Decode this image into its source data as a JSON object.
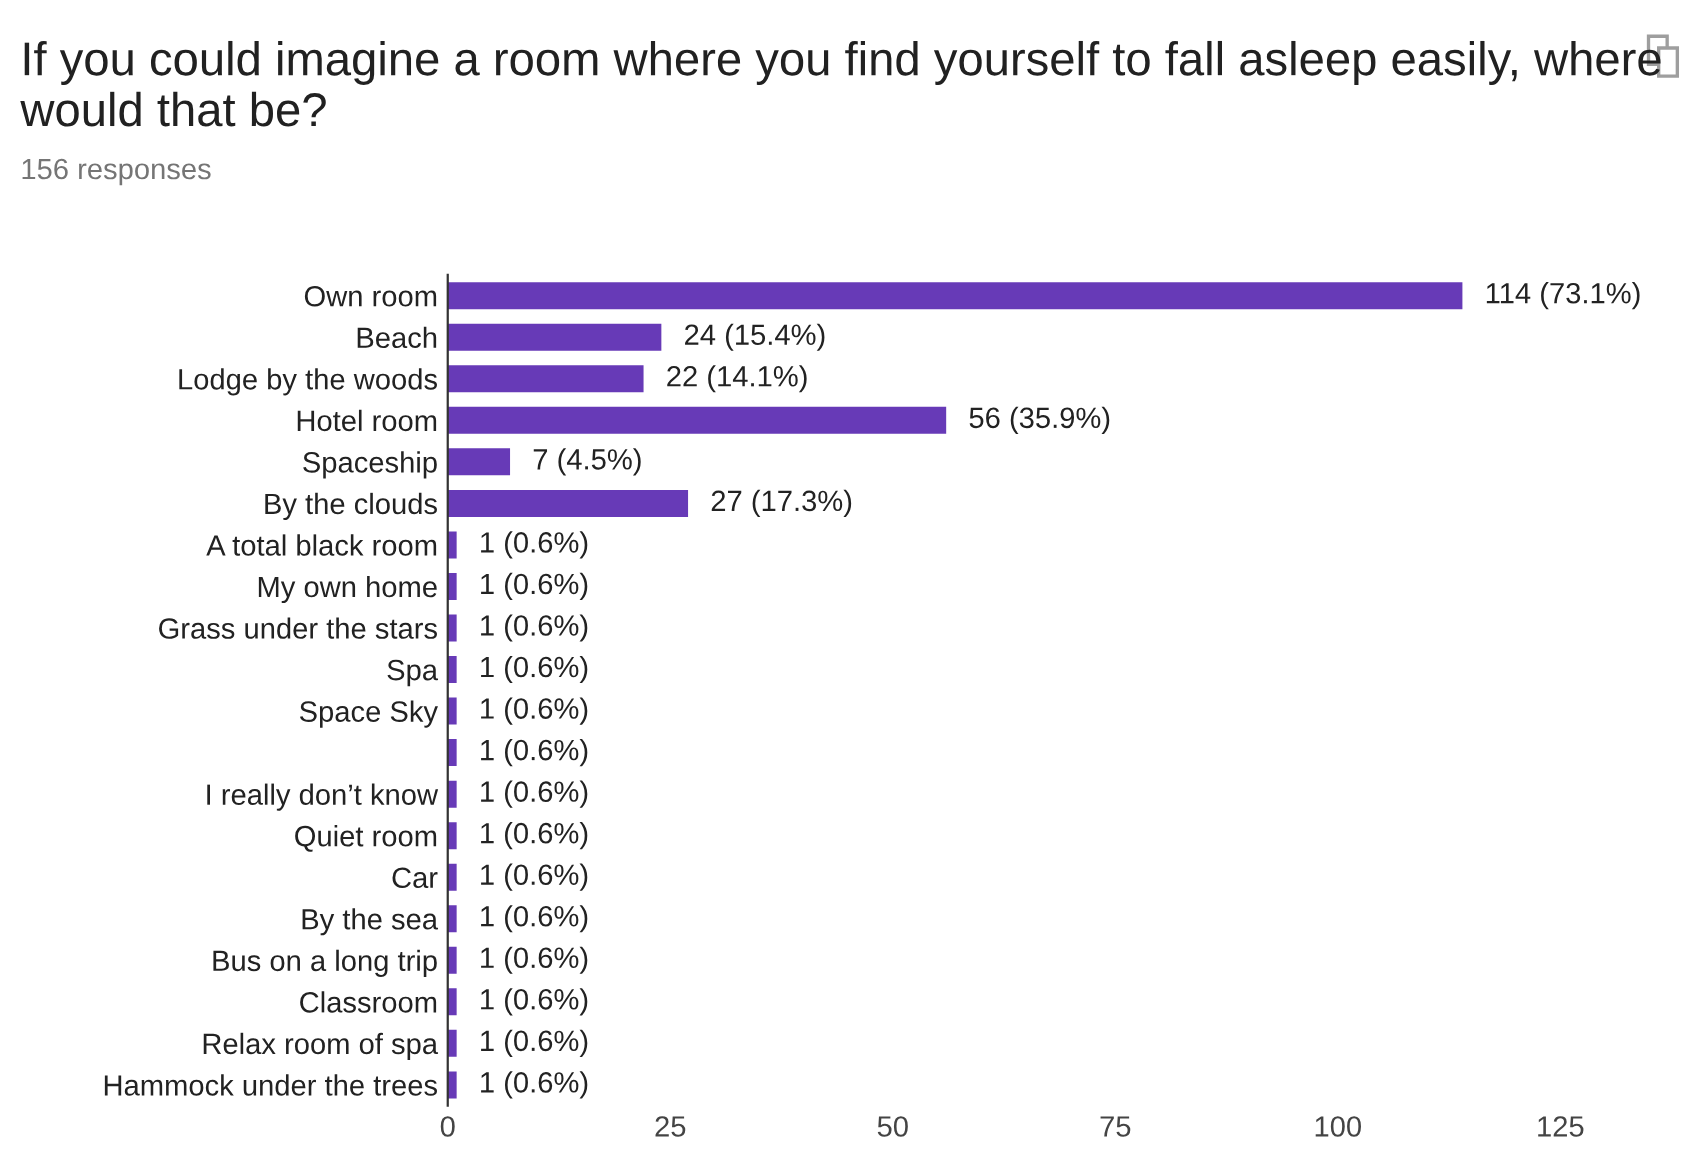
{
  "chart_data": {
    "type": "bar",
    "orientation": "horizontal",
    "title": "If you could imagine a room where you find yourself to fall asleep easily, where would that be?",
    "subtitle": "156 responses",
    "categories": [
      "Own room",
      "Beach",
      "Lodge by the woods",
      "Hotel room",
      "Spaceship",
      "By the clouds",
      "A total black room",
      "My own home",
      "Grass under the stars",
      "Spa",
      "Space Sky",
      null,
      "I really don’t know",
      "Quiet room",
      "Car",
      "By the sea",
      "Bus on a long trip",
      "Classroom",
      "Relax room of spa",
      "Hammock under the trees"
    ],
    "values": [
      114,
      24,
      22,
      56,
      7,
      27,
      1,
      1,
      1,
      1,
      1,
      1,
      1,
      1,
      1,
      1,
      1,
      1,
      1,
      1
    ],
    "value_labels": [
      "114 (73.1%)",
      "24 (15.4%)",
      "22 (14.1%)",
      "56 (35.9%)",
      "7 (4.5%)",
      "27 (17.3%)",
      "1 (0.6%)",
      "1 (0.6%)",
      "1 (0.6%)",
      "1 (0.6%)",
      "1 (0.6%)",
      "1 (0.6%)",
      "1 (0.6%)",
      "1 (0.6%)",
      "1 (0.6%)",
      "1 (0.6%)",
      "1 (0.6%)",
      "1 (0.6%)",
      "1 (0.6%)",
      "1 (0.6%)"
    ],
    "color": "#673ab7",
    "xlim": [
      0,
      125
    ],
    "xticks": [
      0,
      25,
      50,
      75,
      100,
      125
    ],
    "grid": false,
    "legend": false
  }
}
